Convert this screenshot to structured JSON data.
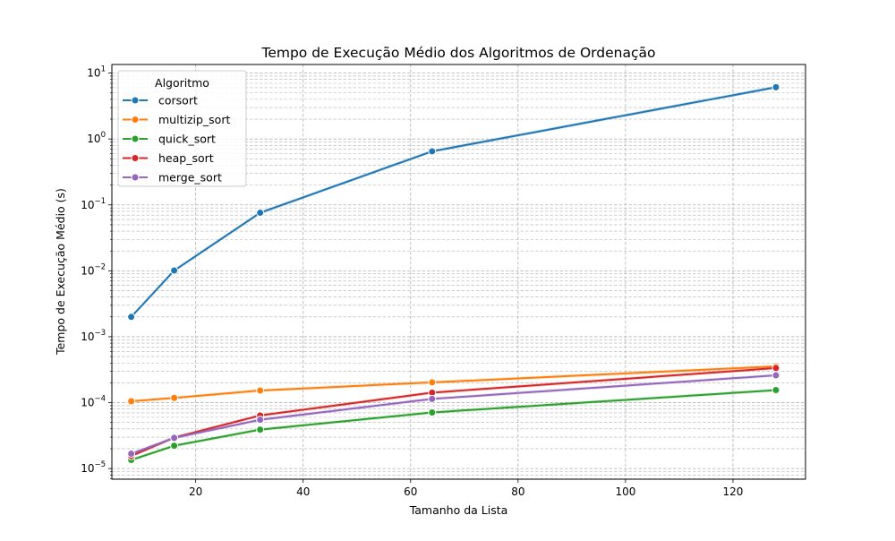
{
  "chart_data": {
    "type": "line",
    "title": "Tempo de Execução Médio dos Algoritmos de Ordenação",
    "xlabel": "Tamanho da Lista",
    "ylabel": "Tempo de Execução Médio (s)",
    "xlim": [
      4.4,
      133.5
    ],
    "ylim": [
      6.9e-06,
      13.5
    ],
    "yscale": "log",
    "grid": true,
    "legend_position": "top-left",
    "legend_title": "Algoritmo",
    "x_ticks": [
      20,
      40,
      60,
      80,
      100,
      120
    ],
    "x_tick_labels": [
      "20",
      "40",
      "60",
      "80",
      "100",
      "120"
    ],
    "y_ticks": [
      {
        "value": 1e-05,
        "base": "10",
        "exp": "−5"
      },
      {
        "value": 0.0001,
        "base": "10",
        "exp": "−4"
      },
      {
        "value": 0.001,
        "base": "10",
        "exp": "−3"
      },
      {
        "value": 0.01,
        "base": "10",
        "exp": "−2"
      },
      {
        "value": 0.1,
        "base": "10",
        "exp": "−1"
      },
      {
        "value": 1,
        "base": "10",
        "exp": "0"
      },
      {
        "value": 10,
        "base": "10",
        "exp": "1"
      }
    ],
    "x": [
      8,
      16,
      32,
      64,
      128
    ],
    "series": [
      {
        "name": "corsort",
        "color": "#1f77b4",
        "values": [
          0.002,
          0.0101,
          0.076,
          0.65,
          6.1
        ]
      },
      {
        "name": "multizip_sort",
        "color": "#ff7f0e",
        "values": [
          0.000105,
          0.000118,
          0.000153,
          0.000203,
          0.000355
        ]
      },
      {
        "name": "quick_sort",
        "color": "#2ca02c",
        "values": [
          1.35e-05,
          2.22e-05,
          3.9e-05,
          7.1e-05,
          0.000155
        ]
      },
      {
        "name": "heap_sort",
        "color": "#d62728",
        "values": [
          1.55e-05,
          2.95e-05,
          6.4e-05,
          0.000142,
          0.000335
        ]
      },
      {
        "name": "merge_sort",
        "color": "#9467bd",
        "values": [
          1.68e-05,
          2.92e-05,
          5.5e-05,
          0.000114,
          0.00026
        ]
      }
    ]
  }
}
